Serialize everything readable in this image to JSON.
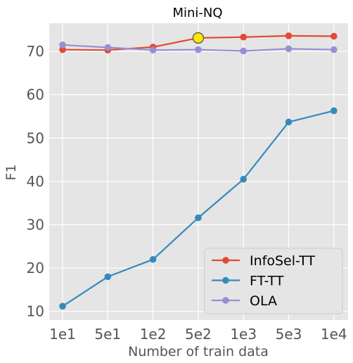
{
  "chart_data": {
    "type": "line",
    "title": "Mini-NQ",
    "xlabel": "Number of train data",
    "ylabel": "F1",
    "categories": [
      "1e1",
      "5e1",
      "1e2",
      "5e2",
      "1e3",
      "5e3",
      "1e4"
    ],
    "yticks": [
      "10",
      "20",
      "30",
      "40",
      "50",
      "60",
      "70"
    ],
    "ylim": [
      8,
      76.5
    ],
    "grid": true,
    "legend_position": "bottom-right",
    "series": [
      {
        "name": "InfoSel-TT",
        "color": "#E24A33",
        "values": [
          70.4,
          70.3,
          71.0,
          73.1,
          73.3,
          73.6,
          73.5
        ]
      },
      {
        "name": "FT-TT",
        "color": "#348ABD",
        "values": [
          11.2,
          18.0,
          22.0,
          31.6,
          40.5,
          53.7,
          56.3
        ]
      },
      {
        "name": "OLA",
        "color": "#988ED5",
        "values": [
          71.5,
          70.9,
          70.3,
          70.4,
          70.1,
          70.6,
          70.4
        ]
      }
    ],
    "highlight": {
      "series": "InfoSel-TT",
      "category": "5e2",
      "value": 73.1,
      "color": "#FFE600"
    }
  },
  "style": {
    "panel_background": "#E5E5E5",
    "grid_color": "#FFFFFF",
    "legend_background": "#E5E5E5"
  }
}
